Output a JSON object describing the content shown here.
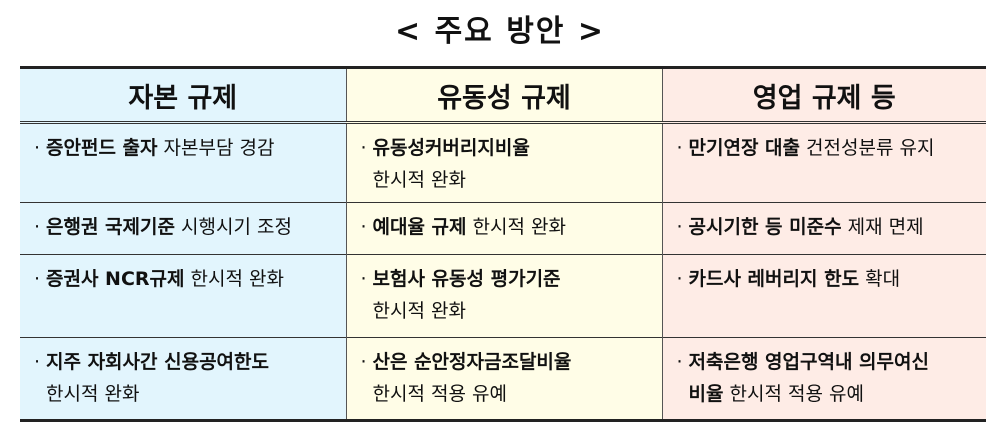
{
  "title": "< 주요 방안 >",
  "colors": {
    "capital": "#e2f5fd",
    "liquidity": "#fffde7",
    "business": "#feece6"
  },
  "columns": [
    {
      "header": "자본 규제",
      "cells": [
        [
          {
            "b": "증안펀드 출자",
            "n": " 자본부담 경감"
          }
        ],
        [
          {
            "b": "은행권 국제기준",
            "n": " 시행시기 조정"
          }
        ],
        [
          {
            "b": "증권사 NCR규제",
            "n": " 한시적 완화"
          }
        ],
        [
          {
            "b": "지주 자회사간 신용공여한도",
            "n": ""
          },
          {
            "b": "",
            "n": "한시적 완화"
          }
        ]
      ]
    },
    {
      "header": "유동성 규제",
      "cells": [
        [
          {
            "b": "유동성커버리지비율",
            "n": ""
          },
          {
            "b": "",
            "n": "한시적 완화"
          }
        ],
        [
          {
            "b": "예대율 규제",
            "n": " 한시적 완화"
          }
        ],
        [
          {
            "b": "보험사 유동성 평가기준",
            "n": ""
          },
          {
            "b": "",
            "n": "한시적 완화"
          }
        ],
        [
          {
            "b": "산은 순안정자금조달비율",
            "n": ""
          },
          {
            "b": "",
            "n": "한시적 적용 유예"
          }
        ]
      ]
    },
    {
      "header": "영업 규제 등",
      "cells": [
        [
          {
            "b": "만기연장 대출",
            "n": " 건전성분류 유지"
          }
        ],
        [
          {
            "b": "공시기한 등 미준수",
            "n": " 제재 면제"
          }
        ],
        [
          {
            "b": "카드사 레버리지 한도",
            "n": " 확대"
          }
        ],
        [
          {
            "b": "저축은행 영업구역내 의무여신",
            "n": ""
          },
          {
            "b": "비율",
            "n": " 한시적 적용 유예"
          }
        ]
      ]
    }
  ]
}
